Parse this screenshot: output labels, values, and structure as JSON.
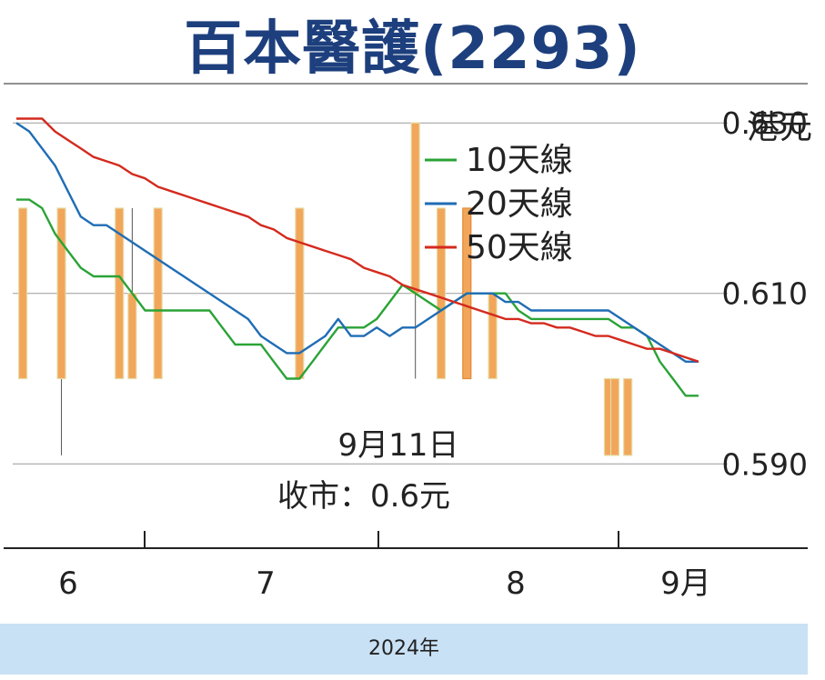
{
  "title": "百本醫護(2293)",
  "unit_label": "港元",
  "annotation": {
    "date": "9月11日",
    "close": "收市：0.6元"
  },
  "footer": "2024年",
  "chart_data": {
    "type": "line",
    "ylabel": "港元",
    "ylim": [
      0.5815,
      0.6345
    ],
    "y_ticks": [
      0.59,
      0.61,
      0.63
    ],
    "y_tick_labels": [
      "0.590",
      "0.610",
      "0.630"
    ],
    "x_tick_labels": [
      "6",
      "7",
      "8",
      "9月"
    ],
    "legend_position": "top-center",
    "n_days": 54,
    "series": [
      {
        "name": "10天線",
        "color": "#2aa336",
        "values": [
          0.621,
          0.621,
          0.62,
          0.617,
          0.615,
          0.613,
          0.612,
          0.612,
          0.612,
          0.61,
          0.608,
          0.608,
          0.608,
          0.608,
          0.608,
          0.608,
          0.606,
          0.604,
          0.604,
          0.604,
          0.602,
          0.6,
          0.6,
          0.602,
          0.604,
          0.606,
          0.606,
          0.606,
          0.607,
          0.609,
          0.611,
          0.61,
          0.609,
          0.608,
          0.609,
          0.61,
          0.61,
          0.61,
          0.61,
          0.608,
          0.607,
          0.607,
          0.607,
          0.607,
          0.607,
          0.607,
          0.607,
          0.606,
          0.606,
          0.605,
          0.602,
          0.6,
          0.598,
          0.598
        ]
      },
      {
        "name": "20天線",
        "color": "#1f6db5",
        "values": [
          0.63,
          0.629,
          0.627,
          0.625,
          0.622,
          0.619,
          0.618,
          0.618,
          0.617,
          0.616,
          0.615,
          0.614,
          0.613,
          0.612,
          0.611,
          0.61,
          0.609,
          0.608,
          0.607,
          0.605,
          0.604,
          0.603,
          0.603,
          0.604,
          0.605,
          0.607,
          0.605,
          0.605,
          0.606,
          0.605,
          0.606,
          0.606,
          0.607,
          0.608,
          0.609,
          0.61,
          0.61,
          0.61,
          0.609,
          0.609,
          0.608,
          0.608,
          0.608,
          0.608,
          0.608,
          0.608,
          0.608,
          0.607,
          0.606,
          0.605,
          0.604,
          0.603,
          0.602,
          0.602
        ]
      },
      {
        "name": "50天線",
        "color": "#d42a1e",
        "values": [
          0.6305,
          0.6305,
          0.6305,
          0.629,
          0.628,
          0.627,
          0.626,
          0.6255,
          0.625,
          0.624,
          0.6235,
          0.6225,
          0.622,
          0.6215,
          0.621,
          0.6205,
          0.62,
          0.6195,
          0.619,
          0.618,
          0.6175,
          0.6165,
          0.616,
          0.6155,
          0.615,
          0.6145,
          0.614,
          0.613,
          0.6125,
          0.612,
          0.611,
          0.6105,
          0.61,
          0.6095,
          0.609,
          0.6085,
          0.608,
          0.6075,
          0.607,
          0.607,
          0.6065,
          0.6065,
          0.606,
          0.606,
          0.6055,
          0.605,
          0.605,
          0.6045,
          0.604,
          0.6035,
          0.6035,
          0.603,
          0.6025,
          0.602
        ]
      }
    ],
    "candles": [
      {
        "i": 0.5,
        "open": 0.62,
        "close": 0.6,
        "high": 0.62,
        "low": 0.6
      },
      {
        "i": 3.5,
        "open": 0.62,
        "close": 0.6,
        "high": 0.62,
        "low": 0.591
      },
      {
        "i": 8.0,
        "open": 0.62,
        "close": 0.6,
        "high": 0.62,
        "low": 0.6
      },
      {
        "i": 9.0,
        "open": 0.61,
        "close": 0.6,
        "high": 0.62,
        "low": 0.6
      },
      {
        "i": 11.0,
        "open": 0.62,
        "close": 0.6,
        "high": 0.62,
        "low": 0.6
      },
      {
        "i": 22.0,
        "open": 0.62,
        "close": 0.6,
        "high": 0.62,
        "low": 0.6
      },
      {
        "i": 31.0,
        "open": 0.63,
        "close": 0.61,
        "high": 0.63,
        "low": 0.6
      },
      {
        "i": 33.0,
        "open": 0.62,
        "close": 0.6,
        "high": 0.62,
        "low": 0.6
      },
      {
        "i": 35.0,
        "open": 0.6,
        "close": 0.62,
        "high": 0.62,
        "low": 0.6
      },
      {
        "i": 37.0,
        "open": 0.61,
        "close": 0.6,
        "high": 0.61,
        "low": 0.6
      },
      {
        "i": 46.0,
        "open": 0.6,
        "close": 0.591,
        "high": 0.6,
        "low": 0.591
      },
      {
        "i": 46.5,
        "open": 0.6,
        "close": 0.591,
        "high": 0.6,
        "low": 0.591
      },
      {
        "i": 47.5,
        "open": 0.6,
        "close": 0.591,
        "high": 0.6,
        "low": 0.591
      }
    ]
  }
}
